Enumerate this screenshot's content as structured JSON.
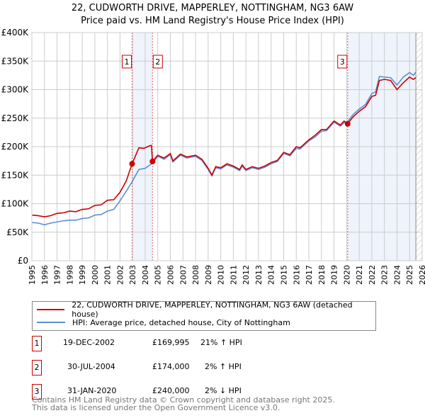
{
  "chart_data": {
    "type": "line",
    "title": "22, CUDWORTH DRIVE, MAPPERLEY, NOTTINGHAM, NG3 6AW",
    "subtitle": "Price paid vs. HM Land Registry's House Price Index (HPI)",
    "xlim": [
      1995,
      2026
    ],
    "ylim": [
      0,
      400000
    ],
    "x_ticks": [
      "1995",
      "1996",
      "1997",
      "1998",
      "1999",
      "2000",
      "2001",
      "2002",
      "2003",
      "2004",
      "2005",
      "2006",
      "2007",
      "2008",
      "2009",
      "2010",
      "2011",
      "2012",
      "2013",
      "2014",
      "2015",
      "2016",
      "2017",
      "2018",
      "2019",
      "2020",
      "2021",
      "2022",
      "2023",
      "2024",
      "2025",
      "2026"
    ],
    "y_ticks": [
      {
        "v": 0,
        "label": "£0"
      },
      {
        "v": 50000,
        "label": "£50K"
      },
      {
        "v": 100000,
        "label": "£100K"
      },
      {
        "v": 150000,
        "label": "£150K"
      },
      {
        "v": 200000,
        "label": "£200K"
      },
      {
        "v": 250000,
        "label": "£250K"
      },
      {
        "v": 300000,
        "label": "£300K"
      },
      {
        "v": 350000,
        "label": "£350K"
      },
      {
        "v": 400000,
        "label": "£400K"
      }
    ],
    "grid": true,
    "series": [
      {
        "name": "22, CUDWORTH DRIVE, MAPPERLEY, NOTTINGHAM, NG3 6AW (detached house)",
        "color": "#cc0000",
        "points": [
          [
            1995,
            80000
          ],
          [
            1995.5,
            79000
          ],
          [
            1996,
            77000
          ],
          [
            1996.5,
            79000
          ],
          [
            1997,
            83000
          ],
          [
            1997.5,
            84000
          ],
          [
            1998,
            87000
          ],
          [
            1998.5,
            86000
          ],
          [
            1999,
            90000
          ],
          [
            1999.5,
            91000
          ],
          [
            2000,
            97000
          ],
          [
            2000.5,
            98000
          ],
          [
            2001,
            106000
          ],
          [
            2001.5,
            107000
          ],
          [
            2002,
            120000
          ],
          [
            2002.5,
            140000
          ],
          [
            2002.96,
            170000
          ],
          [
            2003.5,
            198000
          ],
          [
            2003.9,
            197000
          ],
          [
            2004.4,
            202000
          ],
          [
            2004.5,
            202000
          ],
          [
            2004.58,
            174000
          ],
          [
            2005,
            185000
          ],
          [
            2005.5,
            180000
          ],
          [
            2006,
            188000
          ],
          [
            2006.2,
            175000
          ],
          [
            2006.8,
            187000
          ],
          [
            2007.3,
            182000
          ],
          [
            2008,
            185000
          ],
          [
            2008.5,
            178000
          ],
          [
            2009,
            162000
          ],
          [
            2009.3,
            150000
          ],
          [
            2009.6,
            165000
          ],
          [
            2010,
            163000
          ],
          [
            2010.5,
            170000
          ],
          [
            2011,
            166000
          ],
          [
            2011.5,
            160000
          ],
          [
            2011.7,
            168000
          ],
          [
            2012,
            160000
          ],
          [
            2012.5,
            165000
          ],
          [
            2013,
            162000
          ],
          [
            2013.5,
            166000
          ],
          [
            2014,
            172000
          ],
          [
            2014.5,
            176000
          ],
          [
            2015,
            190000
          ],
          [
            2015.5,
            186000
          ],
          [
            2016,
            200000
          ],
          [
            2016.3,
            198000
          ],
          [
            2017,
            212000
          ],
          [
            2017.5,
            220000
          ],
          [
            2018,
            230000
          ],
          [
            2018.4,
            230000
          ],
          [
            2019,
            245000
          ],
          [
            2019.5,
            238000
          ],
          [
            2019.8,
            245000
          ],
          [
            2020.08,
            240000
          ],
          [
            2020.5,
            252000
          ],
          [
            2021,
            262000
          ],
          [
            2021.5,
            270000
          ],
          [
            2022,
            288000
          ],
          [
            2022.3,
            290000
          ],
          [
            2022.6,
            316000
          ],
          [
            2023,
            318000
          ],
          [
            2023.5,
            316000
          ],
          [
            2024,
            300000
          ],
          [
            2024.5,
            312000
          ],
          [
            2025,
            322000
          ],
          [
            2025.3,
            318000
          ],
          [
            2025.5,
            321000
          ]
        ]
      },
      {
        "name": "HPI: Average price, detached house, City of Nottingham",
        "color": "#5b8fd4",
        "points": [
          [
            1995,
            67000
          ],
          [
            1995.5,
            66000
          ],
          [
            1996,
            63000
          ],
          [
            1996.5,
            66000
          ],
          [
            1997,
            68000
          ],
          [
            1997.5,
            70000
          ],
          [
            1998,
            71000
          ],
          [
            1998.5,
            71000
          ],
          [
            1999,
            74000
          ],
          [
            1999.5,
            75000
          ],
          [
            2000,
            80000
          ],
          [
            2000.5,
            81000
          ],
          [
            2001,
            87000
          ],
          [
            2001.5,
            90000
          ],
          [
            2002,
            105000
          ],
          [
            2002.5,
            122000
          ],
          [
            2003,
            140000
          ],
          [
            2003.5,
            160000
          ],
          [
            2004,
            162000
          ],
          [
            2004.58,
            171000
          ],
          [
            2005,
            183000
          ],
          [
            2005.5,
            178000
          ],
          [
            2006,
            186000
          ],
          [
            2006.2,
            173000
          ],
          [
            2006.8,
            185000
          ],
          [
            2007.3,
            180000
          ],
          [
            2008,
            183000
          ],
          [
            2008.5,
            176000
          ],
          [
            2009,
            160000
          ],
          [
            2009.3,
            149000
          ],
          [
            2009.6,
            163000
          ],
          [
            2010,
            161000
          ],
          [
            2010.5,
            168000
          ],
          [
            2011,
            164000
          ],
          [
            2011.5,
            158000
          ],
          [
            2011.7,
            166000
          ],
          [
            2012,
            158000
          ],
          [
            2012.5,
            163000
          ],
          [
            2013,
            160000
          ],
          [
            2013.5,
            164000
          ],
          [
            2014,
            170000
          ],
          [
            2014.5,
            174000
          ],
          [
            2015,
            188000
          ],
          [
            2015.5,
            184000
          ],
          [
            2016,
            197000
          ],
          [
            2016.3,
            196000
          ],
          [
            2017,
            210000
          ],
          [
            2017.5,
            217000
          ],
          [
            2018,
            227000
          ],
          [
            2018.4,
            228000
          ],
          [
            2019,
            243000
          ],
          [
            2019.5,
            236000
          ],
          [
            2019.8,
            242000
          ],
          [
            2020.08,
            244000
          ],
          [
            2020.5,
            256000
          ],
          [
            2021,
            266000
          ],
          [
            2021.5,
            274000
          ],
          [
            2022,
            293000
          ],
          [
            2022.3,
            296000
          ],
          [
            2022.6,
            323000
          ],
          [
            2023,
            322000
          ],
          [
            2023.5,
            321000
          ],
          [
            2024,
            308000
          ],
          [
            2024.5,
            322000
          ],
          [
            2025,
            330000
          ],
          [
            2025.3,
            325000
          ],
          [
            2025.5,
            331000
          ]
        ]
      }
    ],
    "sales": [
      {
        "id": "1",
        "x": 2002.96,
        "price": 169995,
        "date": "19-DEC-2002",
        "price_label": "£169,995",
        "hpi": "21% ↑ HPI"
      },
      {
        "id": "2",
        "x": 2004.58,
        "price": 174000,
        "date": "30-JUL-2004",
        "price_label": "£174,000",
        "hpi": "2% ↑ HPI"
      },
      {
        "id": "3",
        "x": 2020.08,
        "price": 240000,
        "date": "31-JAN-2020",
        "price_label": "£240,000",
        "hpi": "2% ↓ HPI"
      }
    ],
    "shaded_ranges": [
      [
        2002.96,
        2004.58
      ],
      [
        2020.08,
        2025.5
      ]
    ],
    "hatched_from": 2025.5,
    "legend_position": "below"
  },
  "footer": {
    "line1": "Contains HM Land Registry data © Crown copyright and database right 2025.",
    "line2": "This data is licensed under the Open Government Licence v3.0."
  }
}
